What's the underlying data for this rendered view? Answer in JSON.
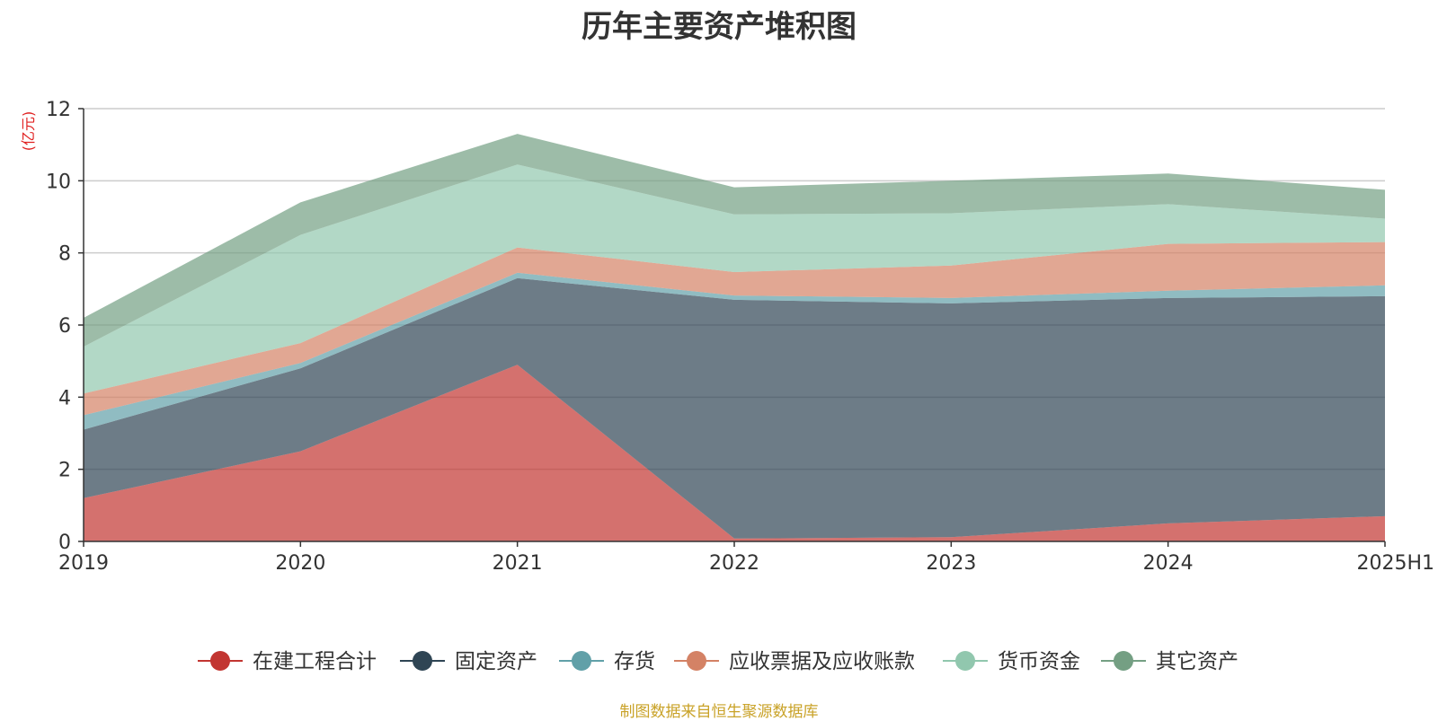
{
  "chart_data": {
    "type": "area",
    "stacked": true,
    "title": "历年主要资产堆积图",
    "ylabel": "(亿元)",
    "categories": [
      "2019",
      "2020",
      "2021",
      "2022",
      "2023",
      "2024",
      "2025H1"
    ],
    "ylim": [
      0,
      12
    ],
    "yticks": [
      0,
      2,
      4,
      6,
      8,
      10,
      12
    ],
    "grid": true,
    "legend_position": "bottom",
    "series": [
      {
        "name": "在建工程合计",
        "color": "#c23531",
        "values": [
          1.2,
          2.5,
          4.9,
          0.08,
          0.12,
          0.5,
          0.7
        ]
      },
      {
        "name": "固定资产",
        "color": "#2f4554",
        "values": [
          1.9,
          2.3,
          2.4,
          6.62,
          6.48,
          6.25,
          6.1
        ]
      },
      {
        "name": "存货",
        "color": "#61a0a8",
        "values": [
          0.4,
          0.15,
          0.15,
          0.12,
          0.15,
          0.2,
          0.3
        ]
      },
      {
        "name": "应收票据及应收账款",
        "color": "#d48265",
        "values": [
          0.6,
          0.55,
          0.7,
          0.65,
          0.9,
          1.3,
          1.2
        ]
      },
      {
        "name": "货币资金",
        "color": "#91c7ae",
        "values": [
          1.3,
          3.0,
          2.3,
          1.6,
          1.45,
          1.1,
          0.65
        ]
      },
      {
        "name": "其它资产",
        "color": "#749f83",
        "values": [
          0.8,
          0.9,
          0.85,
          0.75,
          0.9,
          0.85,
          0.8
        ]
      }
    ]
  },
  "footer": {
    "source": "制图数据来自恒生聚源数据库"
  }
}
